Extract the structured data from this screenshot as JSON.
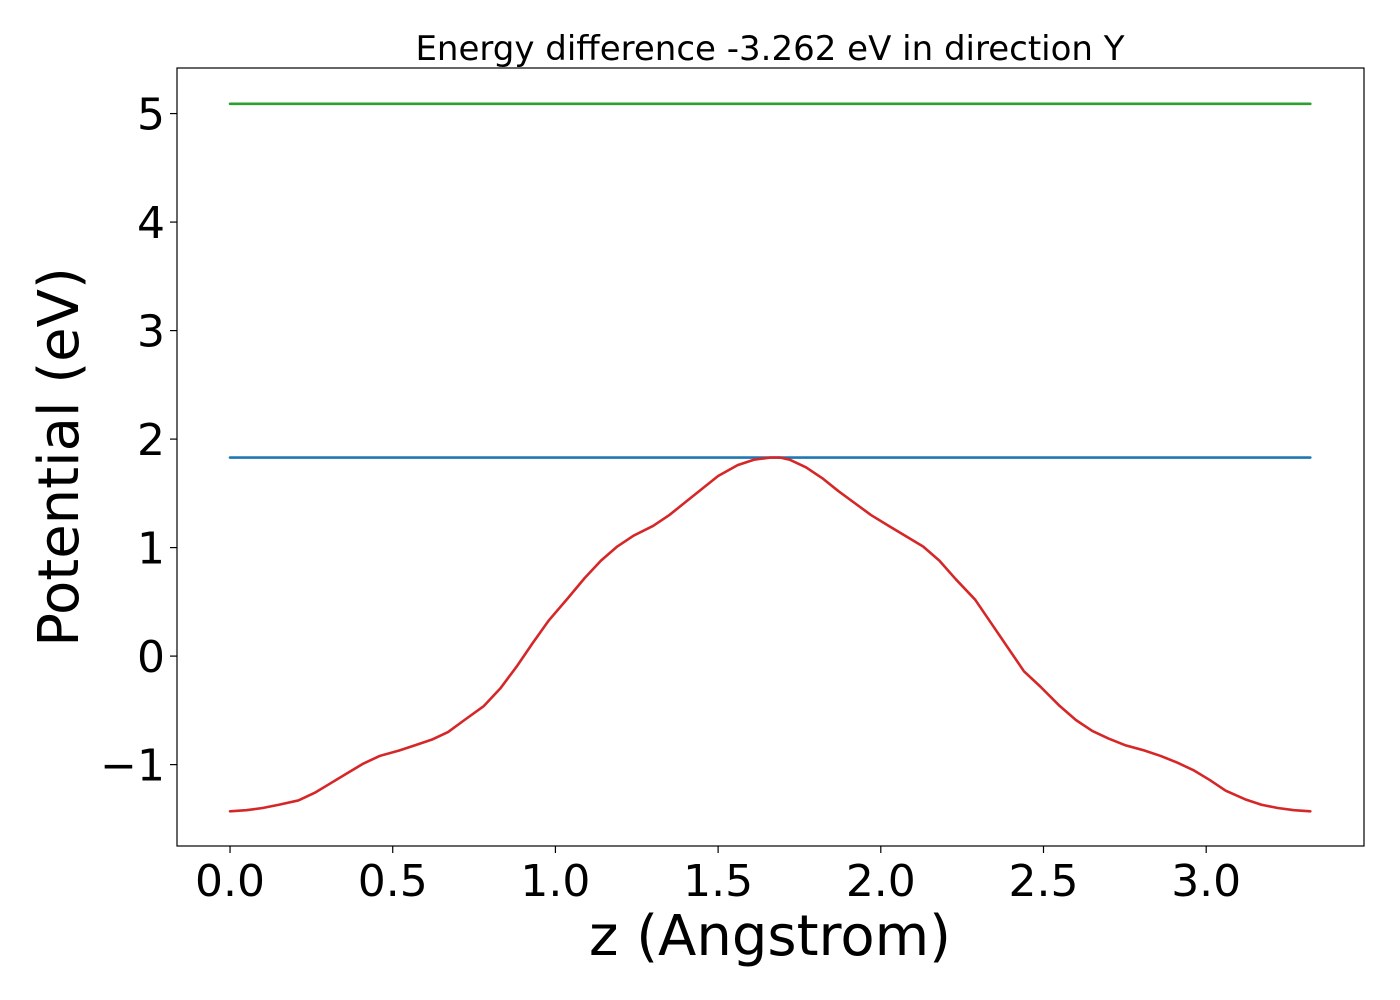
{
  "chart_data": {
    "type": "line",
    "title": "Energy difference -3.262 eV in direction Y",
    "xlabel": "z (Angstrom)",
    "ylabel": "Potential (eV)",
    "xlim": [
      -0.163,
      3.485
    ],
    "ylim": [
      -1.75,
      5.42
    ],
    "xticks": [
      {
        "value": 0.0,
        "label": "0.0"
      },
      {
        "value": 0.5,
        "label": "0.5"
      },
      {
        "value": 1.0,
        "label": "1.0"
      },
      {
        "value": 1.5,
        "label": "1.5"
      },
      {
        "value": 2.0,
        "label": "2.0"
      },
      {
        "value": 2.5,
        "label": "2.5"
      },
      {
        "value": 3.0,
        "label": "3.0"
      }
    ],
    "yticks": [
      {
        "value": -1,
        "label": "−1"
      },
      {
        "value": 0,
        "label": "0"
      },
      {
        "value": 1,
        "label": "1"
      },
      {
        "value": 2,
        "label": "2"
      },
      {
        "value": 3,
        "label": "3"
      },
      {
        "value": 4,
        "label": "4"
      },
      {
        "value": 5,
        "label": "5"
      }
    ],
    "grid": false,
    "legend": "none",
    "series": [
      {
        "color": "#2ca02c",
        "x": [
          0.0,
          3.32
        ],
        "y": [
          5.09,
          5.09
        ]
      },
      {
        "color": "#1f77b4",
        "x": [
          0.0,
          3.32
        ],
        "y": [
          1.83,
          1.83
        ]
      },
      {
        "color": "#d62728",
        "x": [
          0.0,
          0.05,
          0.1,
          0.15,
          0.21,
          0.26,
          0.31,
          0.36,
          0.41,
          0.46,
          0.52,
          0.57,
          0.62,
          0.67,
          0.72,
          0.78,
          0.83,
          0.88,
          0.93,
          0.98,
          1.04,
          1.09,
          1.14,
          1.19,
          1.24,
          1.3,
          1.35,
          1.4,
          1.45,
          1.5,
          1.56,
          1.61,
          1.66,
          1.69,
          1.72,
          1.77,
          1.82,
          1.87,
          1.92,
          1.97,
          2.03,
          2.08,
          2.13,
          2.18,
          2.23,
          2.29,
          2.34,
          2.39,
          2.44,
          2.49,
          2.55,
          2.6,
          2.65,
          2.7,
          2.75,
          2.81,
          2.86,
          2.91,
          2.96,
          3.01,
          3.06,
          3.12,
          3.17,
          3.22,
          3.27,
          3.32
        ],
        "y": [
          -1.43,
          -1.42,
          -1.4,
          -1.37,
          -1.33,
          -1.26,
          -1.17,
          -1.08,
          -0.99,
          -0.92,
          -0.87,
          -0.82,
          -0.77,
          -0.7,
          -0.59,
          -0.46,
          -0.3,
          -0.1,
          0.12,
          0.33,
          0.54,
          0.72,
          0.88,
          1.01,
          1.11,
          1.2,
          1.3,
          1.42,
          1.54,
          1.66,
          1.76,
          1.81,
          1.83,
          1.83,
          1.81,
          1.74,
          1.64,
          1.52,
          1.41,
          1.3,
          1.19,
          1.1,
          1.01,
          0.88,
          0.71,
          0.52,
          0.3,
          0.08,
          -0.14,
          -0.28,
          -0.46,
          -0.59,
          -0.69,
          -0.76,
          -0.82,
          -0.87,
          -0.92,
          -0.98,
          -1.05,
          -1.14,
          -1.24,
          -1.32,
          -1.37,
          -1.4,
          -1.42,
          -1.43
        ]
      }
    ]
  }
}
